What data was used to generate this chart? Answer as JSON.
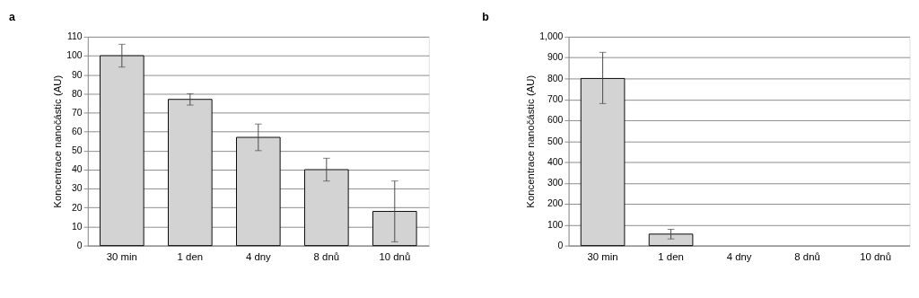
{
  "chart_data": [
    {
      "type": "bar",
      "title": "a",
      "ylabel": "Koncentrace nanočástic (AU)",
      "categories": [
        "30 min",
        "1 den",
        "4 dny",
        "8 dnů",
        "10 dnů"
      ],
      "values": [
        100,
        77,
        57,
        40,
        18
      ],
      "errors": [
        [
          94,
          106
        ],
        [
          74,
          80
        ],
        [
          50,
          64
        ],
        [
          34,
          46
        ],
        [
          2,
          34
        ]
      ],
      "color": "#d3d3d3",
      "ylim": [
        0,
        110
      ],
      "yticks": [
        0,
        10,
        20,
        30,
        40,
        50,
        60,
        70,
        80,
        90,
        100,
        110
      ],
      "grid": "y"
    },
    {
      "type": "bar",
      "title": "b",
      "ylabel": "Koncentrace nanočástic (AU)",
      "categories": [
        "30 min",
        "1 den",
        "4 dny",
        "8 dnů",
        "10 dnů"
      ],
      "values": [
        800,
        55,
        null,
        null,
        null
      ],
      "errors": [
        [
          680,
          925
        ],
        [
          32,
          78
        ],
        null,
        null,
        null
      ],
      "color": "#d3d3d3",
      "ylim": [
        0,
        1000
      ],
      "yticks": [
        0,
        100,
        200,
        300,
        400,
        500,
        600,
        700,
        800,
        900,
        {
          "value": 1000,
          "label": "1,000"
        }
      ],
      "grid": "y"
    }
  ]
}
